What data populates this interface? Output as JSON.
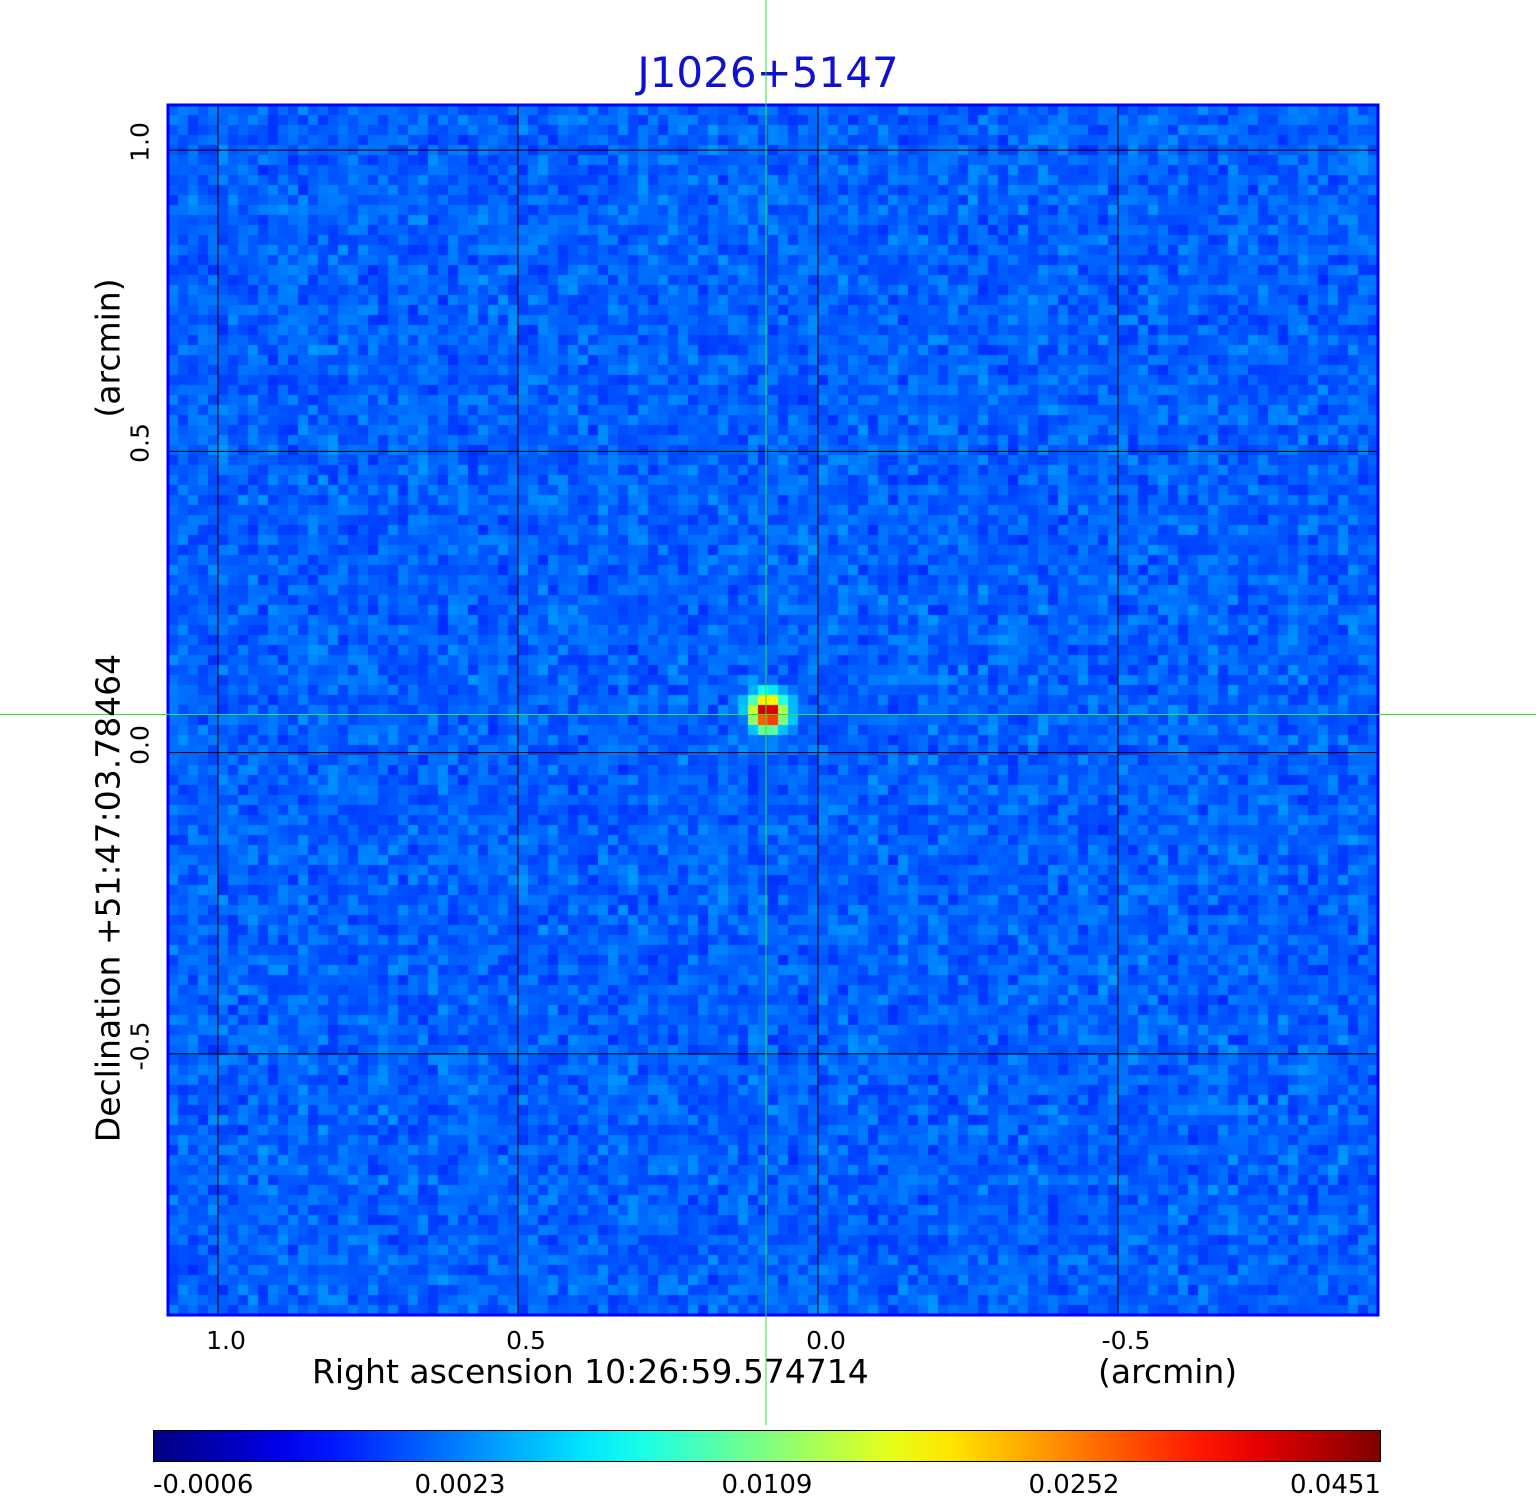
{
  "title": "J1026+5147",
  "x_axis": {
    "label": "Right ascension  10:26:59.574714",
    "unit": "(arcmin)",
    "ticks": [
      "1.0",
      "0.5",
      "0.0",
      "-0.5"
    ],
    "tick_values": [
      1.0,
      0.5,
      0.0,
      -0.5
    ],
    "range": [
      1.0833,
      -0.9333
    ]
  },
  "y_axis": {
    "label": "Declination  +51:47:03.78464",
    "unit": "(arcmin)",
    "ticks": [
      "1.0",
      "0.5",
      "0.0",
      "-0.5"
    ],
    "tick_values": [
      1.0,
      0.5,
      0.0,
      -0.5
    ],
    "range": [
      -0.9333,
      1.075
    ]
  },
  "crosshair": {
    "ra": 0.0867,
    "dec": 0.0633,
    "color": "#33dd33"
  },
  "source_peak": {
    "ra": 0.0833,
    "dec": 0.0667,
    "value": 0.0451
  },
  "colorbar": {
    "labels": [
      "-0.0006",
      "0.0023",
      "0.0109",
      "0.0252",
      "0.0451"
    ],
    "values": [
      -0.0006,
      0.0023,
      0.0109,
      0.0252,
      0.0451
    ],
    "colormap": "jet"
  },
  "colors": {
    "title": "#1010d0",
    "frame": "#0000ff",
    "grid": "#000000"
  }
}
